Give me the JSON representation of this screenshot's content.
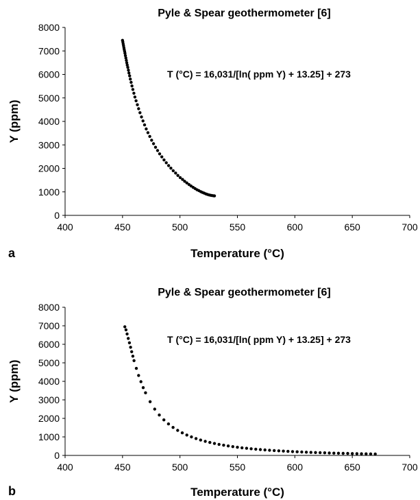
{
  "chart_data": [
    {
      "type": "scatter",
      "panel_label": "a",
      "title": "Pyle & Spear geothermometer [6]",
      "xlabel": "Temperature (°C)",
      "ylabel": "Y (ppm)",
      "annotation": "T (°C) = 16,031/[ln( ppm Y) + 13.25] + 273",
      "xlim": [
        400,
        700
      ],
      "ylim": [
        0,
        8000
      ],
      "xticks": [
        "400",
        "450",
        "500",
        "550",
        "600",
        "650",
        "700"
      ],
      "yticks": [
        "0",
        "1000",
        "2000",
        "3000",
        "4000",
        "5000",
        "6000",
        "7000",
        "8000"
      ],
      "grid": false,
      "marker_color": "#000000",
      "x": [
        450,
        450.3,
        450.6,
        450.9,
        451.2,
        451.5,
        451.8,
        452.1,
        452.5,
        452.9,
        453.3,
        453.7,
        454.1,
        454.6,
        455.1,
        455.6,
        456.2,
        456.8,
        457.5,
        458.2,
        459,
        459.9,
        460.8,
        461.8,
        462.9,
        464,
        465.2,
        466.5,
        467.8,
        469.2,
        470.6,
        472.1,
        473.7,
        475.3,
        477,
        478.7,
        480.5,
        482.3,
        484.2,
        486.1,
        488.1,
        490.1,
        492.1,
        494.1,
        496.2,
        498.2,
        500.2,
        502.2,
        504.1,
        506,
        507.9,
        509.7,
        511.5,
        513.2,
        514.9,
        516.5,
        518.1,
        519.6,
        521.1,
        522.5,
        523.9,
        525.3,
        526.6,
        527.9,
        529.2,
        530
      ],
      "y": [
        7450,
        7380,
        7300,
        7220,
        7140,
        7060,
        6980,
        6900,
        6800,
        6700,
        6600,
        6500,
        6400,
        6300,
        6180,
        6060,
        5940,
        5800,
        5660,
        5510,
        5360,
        5200,
        5040,
        4880,
        4710,
        4540,
        4370,
        4190,
        4020,
        3850,
        3680,
        3520,
        3360,
        3200,
        3050,
        2900,
        2760,
        2620,
        2490,
        2360,
        2240,
        2120,
        2010,
        1900,
        1800,
        1700,
        1610,
        1530,
        1450,
        1380,
        1310,
        1250,
        1190,
        1140,
        1090,
        1050,
        1010,
        975,
        945,
        915,
        890,
        870,
        855,
        845,
        835,
        830
      ]
    },
    {
      "type": "scatter",
      "panel_label": "b",
      "title": "Pyle & Spear geothermometer [6]",
      "xlabel": "Temperature (°C)",
      "ylabel": "Y (ppm)",
      "annotation": "T (°C) = 16,031/[ln( ppm Y) + 13.25] + 273",
      "xlim": [
        400,
        700
      ],
      "ylim": [
        0,
        8000
      ],
      "xticks": [
        "400",
        "450",
        "500",
        "550",
        "600",
        "650",
        "700"
      ],
      "yticks": [
        "0",
        "1000",
        "2000",
        "3000",
        "4000",
        "5000",
        "6000",
        "7000",
        "8000"
      ],
      "grid": false,
      "marker_color": "#000000",
      "x": [
        452,
        453,
        454,
        455,
        456,
        457,
        458,
        459,
        460,
        462,
        464,
        466,
        468,
        470,
        474,
        478,
        482,
        486,
        490,
        494,
        498,
        502,
        506,
        510,
        514,
        518,
        522,
        526,
        530,
        534,
        538,
        542,
        546,
        550,
        554,
        558,
        562,
        566,
        570,
        574,
        578,
        582,
        586,
        590,
        594,
        598,
        602,
        606,
        610,
        614,
        618,
        622,
        626,
        630,
        634,
        638,
        642,
        646,
        650,
        654,
        658,
        662,
        666,
        670
      ],
      "y": [
        6950,
        6780,
        6560,
        6320,
        6080,
        5840,
        5600,
        5360,
        5120,
        4700,
        4320,
        3980,
        3660,
        3380,
        2900,
        2500,
        2180,
        1920,
        1700,
        1510,
        1350,
        1220,
        1100,
        1000,
        910,
        830,
        760,
        700,
        645,
        595,
        550,
        510,
        475,
        442,
        412,
        385,
        360,
        337,
        316,
        297,
        279,
        262,
        247,
        232,
        219,
        207,
        195,
        184,
        174,
        164,
        155,
        147,
        139,
        131,
        124,
        118,
        112,
        106,
        100,
        95,
        90,
        86,
        82,
        78
      ]
    }
  ]
}
